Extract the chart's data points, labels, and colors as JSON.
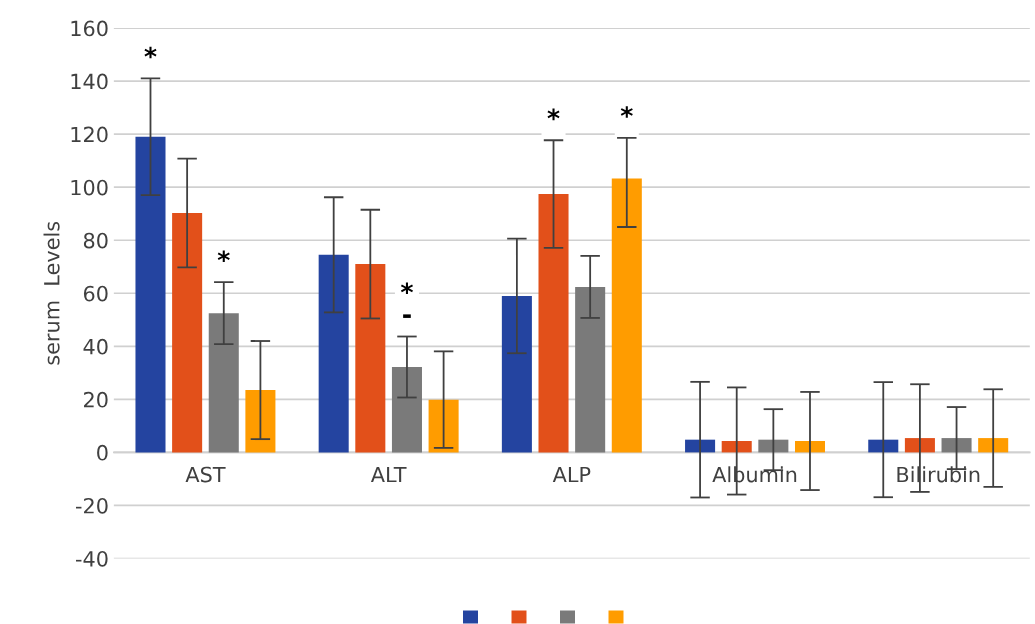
{
  "chart_data": {
    "type": "bar",
    "ylabel": "serum  Levels",
    "categories": [
      "AST",
      "ALT",
      "ALP",
      "Albumin",
      "Bilirubin"
    ],
    "series": [
      {
        "color": "#2444a0",
        "values": [
          119,
          74.5,
          59,
          4.8,
          4.8
        ],
        "errors": [
          22,
          21.7,
          21.6,
          21.8,
          21.7
        ],
        "value_labels": [
          "*",
          null,
          null,
          null,
          null
        ]
      },
      {
        "color": "#e2501a",
        "values": [
          90.3,
          71,
          97.4,
          4.3,
          5.4
        ],
        "errors": [
          20.5,
          20.5,
          20.3,
          20.2,
          20.3
        ],
        "value_labels": [
          null,
          null,
          "*",
          null,
          null
        ]
      },
      {
        "color": "#7a7a7a",
        "values": [
          52.5,
          32.2,
          62.4,
          4.8,
          5.4
        ],
        "errors": [
          11.7,
          11.5,
          11.7,
          11.5,
          11.7
        ],
        "value_labels": [
          "*",
          "*\n-",
          null,
          null,
          null
        ]
      },
      {
        "color": "#ff9c00",
        "values": [
          23.5,
          19.9,
          103.3,
          4.3,
          5.4
        ],
        "errors": [
          18.5,
          18.2,
          [
            85,
            118.6
          ],
          18.5,
          18.4
        ],
        "value_labels": [
          null,
          null,
          "*",
          null,
          null
        ]
      }
    ],
    "ylim": [
      -40,
      160
    ],
    "yticks": [
      -40,
      -20,
      0,
      20,
      40,
      60,
      80,
      100,
      120,
      140,
      160
    ],
    "grid": "y"
  }
}
